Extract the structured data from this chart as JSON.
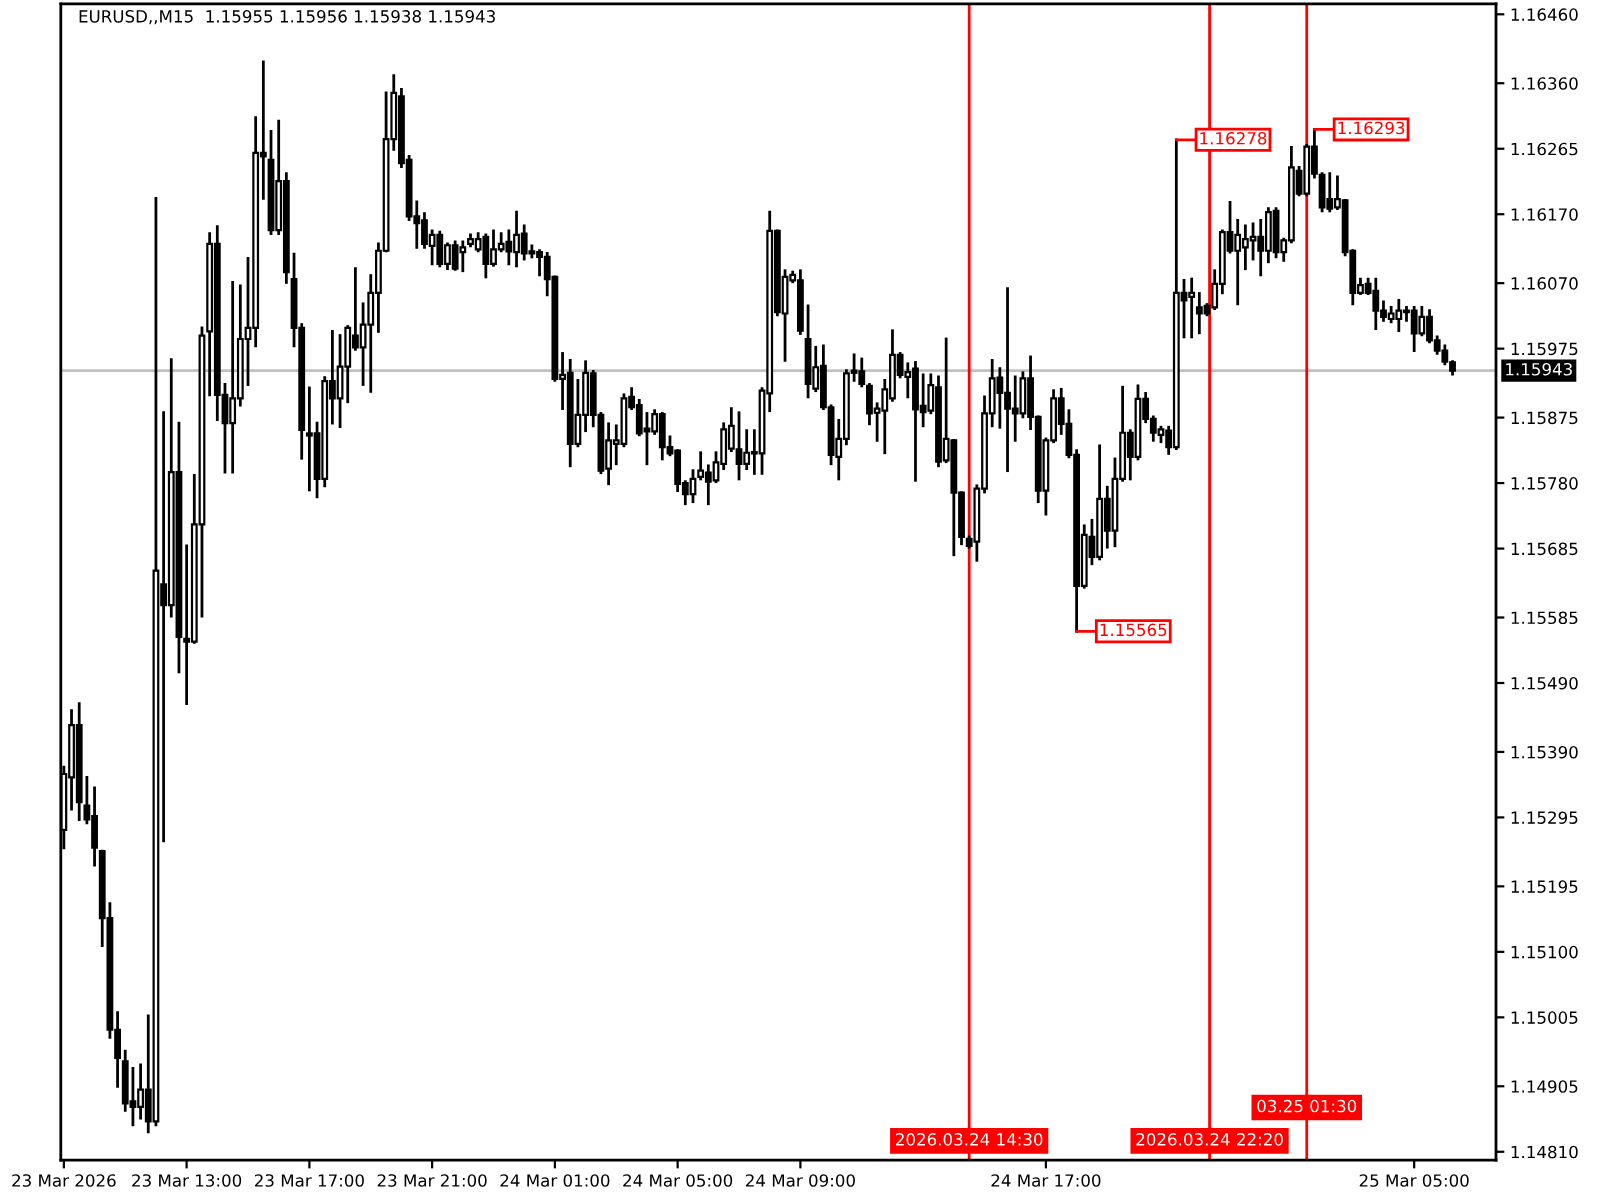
{
  "chart_data": {
    "type": "candlestick",
    "title": "EURUSD,,M15  1.15955 1.15956 1.15938 1.15943",
    "x": [
      "2026-03-23T09:00",
      "2026-03-23T09:15",
      "2026-03-23T09:30",
      "2026-03-23T09:45",
      "2026-03-23T10:00",
      "2026-03-23T10:15",
      "2026-03-23T10:30",
      "2026-03-23T10:45",
      "2026-03-23T11:00",
      "2026-03-23T11:15",
      "2026-03-23T11:30",
      "2026-03-23T11:45",
      "2026-03-23T12:00",
      "2026-03-23T12:15",
      "2026-03-23T12:30",
      "2026-03-23T12:45",
      "2026-03-23T13:00",
      "2026-03-23T13:15",
      "2026-03-23T13:30",
      "2026-03-23T13:45",
      "2026-03-23T14:00",
      "2026-03-23T14:15",
      "2026-03-23T14:30",
      "2026-03-23T14:45",
      "2026-03-23T15:00",
      "2026-03-23T15:15",
      "2026-03-23T15:30",
      "2026-03-23T15:45",
      "2026-03-23T16:00",
      "2026-03-23T16:15",
      "2026-03-23T16:30",
      "2026-03-23T16:45",
      "2026-03-23T17:00",
      "2026-03-23T17:15",
      "2026-03-23T17:30",
      "2026-03-23T17:45",
      "2026-03-23T18:00",
      "2026-03-23T18:15",
      "2026-03-23T18:30",
      "2026-03-23T18:45",
      "2026-03-23T19:00",
      "2026-03-23T19:15",
      "2026-03-23T19:30",
      "2026-03-23T19:45",
      "2026-03-23T20:00",
      "2026-03-23T20:15",
      "2026-03-23T20:30",
      "2026-03-23T20:45",
      "2026-03-23T21:00",
      "2026-03-23T21:15",
      "2026-03-23T21:30",
      "2026-03-23T21:45",
      "2026-03-23T22:00",
      "2026-03-23T22:15",
      "2026-03-23T22:30",
      "2026-03-23T22:45",
      "2026-03-23T23:00",
      "2026-03-23T23:15",
      "2026-03-23T23:30",
      "2026-03-23T23:45",
      "2026-03-24T00:00",
      "2026-03-24T00:15",
      "2026-03-24T00:30",
      "2026-03-24T00:45",
      "2026-03-24T01:00",
      "2026-03-24T01:15",
      "2026-03-24T01:30",
      "2026-03-24T01:45",
      "2026-03-24T02:00",
      "2026-03-24T02:15",
      "2026-03-24T02:30",
      "2026-03-24T02:45",
      "2026-03-24T03:00",
      "2026-03-24T03:15",
      "2026-03-24T03:30",
      "2026-03-24T03:45",
      "2026-03-24T04:00",
      "2026-03-24T04:15",
      "2026-03-24T04:30",
      "2026-03-24T04:45",
      "2026-03-24T05:00",
      "2026-03-24T05:15",
      "2026-03-24T05:30",
      "2026-03-24T05:45",
      "2026-03-24T06:00",
      "2026-03-24T06:15",
      "2026-03-24T06:30",
      "2026-03-24T06:45",
      "2026-03-24T07:00",
      "2026-03-24T07:15",
      "2026-03-24T07:30",
      "2026-03-24T07:45",
      "2026-03-24T08:00",
      "2026-03-24T08:15",
      "2026-03-24T08:30",
      "2026-03-24T08:45",
      "2026-03-24T09:00",
      "2026-03-24T09:15",
      "2026-03-24T09:30",
      "2026-03-24T09:45",
      "2026-03-24T10:00",
      "2026-03-24T10:15",
      "2026-03-24T10:30",
      "2026-03-24T10:45",
      "2026-03-24T11:00",
      "2026-03-24T11:15",
      "2026-03-24T11:30",
      "2026-03-24T11:45",
      "2026-03-24T12:00",
      "2026-03-24T12:15",
      "2026-03-24T12:30",
      "2026-03-24T12:45",
      "2026-03-24T13:00",
      "2026-03-24T13:15",
      "2026-03-24T13:30",
      "2026-03-24T13:45",
      "2026-03-24T14:00",
      "2026-03-24T14:15",
      "2026-03-24T14:30",
      "2026-03-24T14:45",
      "2026-03-24T15:00",
      "2026-03-24T15:15",
      "2026-03-24T15:30",
      "2026-03-24T15:45",
      "2026-03-24T16:00",
      "2026-03-24T16:15",
      "2026-03-24T16:30",
      "2026-03-24T16:45",
      "2026-03-24T17:00",
      "2026-03-24T17:15",
      "2026-03-24T17:30",
      "2026-03-24T17:45",
      "2026-03-24T18:00",
      "2026-03-24T18:15",
      "2026-03-24T18:30",
      "2026-03-24T18:45",
      "2026-03-24T19:00",
      "2026-03-24T19:15",
      "2026-03-24T19:30",
      "2026-03-24T19:45",
      "2026-03-24T20:00",
      "2026-03-24T20:15",
      "2026-03-24T20:30",
      "2026-03-24T20:45",
      "2026-03-24T21:00",
      "2026-03-24T21:15",
      "2026-03-24T21:30",
      "2026-03-24T21:45",
      "2026-03-24T22:00",
      "2026-03-24T22:15",
      "2026-03-24T22:30",
      "2026-03-24T22:45",
      "2026-03-24T23:00",
      "2026-03-24T23:15",
      "2026-03-24T23:30",
      "2026-03-24T23:45",
      "2026-03-25T00:00",
      "2026-03-25T00:15",
      "2026-03-25T00:30",
      "2026-03-25T00:45",
      "2026-03-25T01:00",
      "2026-03-25T01:15",
      "2026-03-25T01:30",
      "2026-03-25T01:45",
      "2026-03-25T02:00",
      "2026-03-25T02:15",
      "2026-03-25T02:30",
      "2026-03-25T02:45",
      "2026-03-25T03:00",
      "2026-03-25T03:15",
      "2026-03-25T03:30",
      "2026-03-25T03:45",
      "2026-03-25T04:00",
      "2026-03-25T04:15",
      "2026-03-25T04:30",
      "2026-03-25T04:45",
      "2026-03-25T05:00",
      "2026-03-25T05:15",
      "2026-03-25T05:30",
      "2026-03-25T05:45",
      "2026-03-25T06:00",
      "2026-03-25T06:15"
    ],
    "ohlc": [
      [
        1.15277,
        1.15368,
        1.15251,
        1.15358
      ],
      [
        1.15353,
        1.1545,
        1.15307,
        1.15429
      ],
      [
        1.15429,
        1.1546,
        1.15292,
        1.15317
      ],
      [
        1.15312,
        1.15353,
        1.15287,
        1.15292
      ],
      [
        1.15297,
        1.15338,
        1.15226,
        1.15251
      ],
      [
        1.15246,
        1.15246,
        1.15109,
        1.15149
      ],
      [
        1.15149,
        1.1517,
        1.14976,
        1.14987
      ],
      [
        1.14987,
        1.15012,
        1.14905,
        1.14946
      ],
      [
        1.14941,
        1.14956,
        1.1487,
        1.1488
      ],
      [
        1.14883,
        1.14931,
        1.14849,
        1.14875
      ],
      [
        1.14875,
        1.14936,
        1.14859,
        1.149
      ],
      [
        1.149,
        1.15007,
        1.14839,
        1.14854
      ],
      [
        1.14854,
        1.16193,
        1.14849,
        1.15653
      ],
      [
        1.15633,
        1.15882,
        1.15261,
        1.15603
      ],
      [
        1.15603,
        1.15959,
        1.15587,
        1.15796
      ],
      [
        1.15796,
        1.15867,
        1.15506,
        1.15557
      ],
      [
        1.15554,
        1.15689,
        1.1546,
        1.1555
      ],
      [
        1.1555,
        1.15791,
        1.15549,
        1.1572
      ],
      [
        1.1572,
        1.16005,
        1.15587,
        1.15994
      ],
      [
        1.16,
        1.16142,
        1.15908,
        1.16127
      ],
      [
        1.16127,
        1.16152,
        1.15872,
        1.15908
      ],
      [
        1.15908,
        1.15923,
        1.15796,
        1.15867
      ],
      [
        1.15867,
        1.16071,
        1.15796,
        1.15903
      ],
      [
        1.15903,
        1.16066,
        1.15893,
        1.15989
      ],
      [
        1.15989,
        1.16106,
        1.15923,
        1.16005
      ],
      [
        1.16005,
        1.1631,
        1.15979,
        1.16259
      ],
      [
        1.16259,
        1.16391,
        1.16193,
        1.16254
      ],
      [
        1.16249,
        1.1629,
        1.16142,
        1.16147
      ],
      [
        1.16147,
        1.16305,
        1.16142,
        1.16218
      ],
      [
        1.16218,
        1.16229,
        1.16071,
        1.16086
      ],
      [
        1.16076,
        1.16112,
        1.15979,
        1.16005
      ],
      [
        1.16005,
        1.1601,
        1.15816,
        1.15857
      ],
      [
        1.15852,
        1.15918,
        1.1577,
        1.15849
      ],
      [
        1.15852,
        1.15867,
        1.1576,
        1.15786
      ],
      [
        1.15786,
        1.15933,
        1.15776,
        1.15928
      ],
      [
        1.15928,
        1.16,
        1.15867,
        1.15903
      ],
      [
        1.15903,
        1.15994,
        1.15862,
        1.15949
      ],
      [
        1.15949,
        1.16007,
        1.15898,
        1.16005
      ],
      [
        1.15994,
        1.16091,
        1.15974,
        1.15977
      ],
      [
        1.15977,
        1.1604,
        1.15923,
        1.1601
      ],
      [
        1.1601,
        1.16081,
        1.15913,
        1.16056
      ],
      [
        1.16056,
        1.16127,
        1.16,
        1.16117
      ],
      [
        1.16117,
        1.16346,
        1.16117,
        1.16279
      ],
      [
        1.16279,
        1.16371,
        1.16264,
        1.16346
      ],
      [
        1.16341,
        1.16351,
        1.16239,
        1.16244
      ],
      [
        1.16249,
        1.16254,
        1.16162,
        1.16167
      ],
      [
        1.16167,
        1.16188,
        1.16122,
        1.16157
      ],
      [
        1.16161,
        1.16171,
        1.16122,
        1.16127
      ],
      [
        1.16124,
        1.16146,
        1.16098,
        1.1614
      ],
      [
        1.1614,
        1.16144,
        1.16095,
        1.16098
      ],
      [
        1.16098,
        1.16127,
        1.16091,
        1.16125
      ],
      [
        1.16125,
        1.1613,
        1.1609,
        1.16091
      ],
      [
        1.16115,
        1.1613,
        1.16088,
        1.16122
      ],
      [
        1.16127,
        1.1614,
        1.16124,
        1.16134
      ],
      [
        1.16119,
        1.16142,
        1.16117,
        1.16134
      ],
      [
        1.16137,
        1.1614,
        1.16079,
        1.16098
      ],
      [
        1.16098,
        1.16146,
        1.16096,
        1.16119
      ],
      [
        1.16119,
        1.16142,
        1.16117,
        1.16127
      ],
      [
        1.1613,
        1.16146,
        1.16098,
        1.16116
      ],
      [
        1.16115,
        1.16173,
        1.16095,
        1.1614
      ],
      [
        1.16142,
        1.16153,
        1.16105,
        1.16113
      ],
      [
        1.16116,
        1.16124,
        1.16108,
        1.16113
      ],
      [
        1.16115,
        1.16117,
        1.16082,
        1.16108
      ],
      [
        1.16108,
        1.16113,
        1.16053,
        1.16076
      ],
      [
        1.16079,
        1.16079,
        1.15929,
        1.15931
      ],
      [
        1.15931,
        1.15968,
        1.15888,
        1.15937
      ],
      [
        1.1594,
        1.15958,
        1.15805,
        1.15837
      ],
      [
        1.15837,
        1.15929,
        1.15834,
        1.15879
      ],
      [
        1.15879,
        1.15956,
        1.15856,
        1.1594
      ],
      [
        1.15939,
        1.15942,
        1.15863,
        1.15879
      ],
      [
        1.15879,
        1.15881,
        1.15795,
        1.15798
      ],
      [
        1.15801,
        1.15866,
        1.15779,
        1.15842
      ],
      [
        1.15837,
        1.15863,
        1.15808,
        1.15842
      ],
      [
        1.15837,
        1.15908,
        1.15834,
        1.15903
      ],
      [
        1.15905,
        1.15917,
        1.15888,
        1.1589
      ],
      [
        1.15893,
        1.159,
        1.1585,
        1.15852
      ],
      [
        1.15859,
        1.15881,
        1.15808,
        1.15855
      ],
      [
        1.15855,
        1.15885,
        1.15852,
        1.1588
      ],
      [
        1.1588,
        1.15881,
        1.15815,
        1.15832
      ],
      [
        1.15832,
        1.15847,
        1.15821,
        1.15823
      ],
      [
        1.15827,
        1.15827,
        1.15769,
        1.15779
      ],
      [
        1.1578,
        1.15782,
        1.1575,
        1.15764
      ],
      [
        1.15764,
        1.15798,
        1.15753,
        1.15786
      ],
      [
        1.15789,
        1.15824,
        1.15786,
        1.15798
      ],
      [
        1.15795,
        1.15805,
        1.1575,
        1.15782
      ],
      [
        1.15784,
        1.15824,
        1.15782,
        1.1581
      ],
      [
        1.15808,
        1.15866,
        1.15801,
        1.15858
      ],
      [
        1.1583,
        1.15888,
        1.15827,
        1.15863
      ],
      [
        1.15829,
        1.15882,
        1.15786,
        1.15808
      ],
      [
        1.15808,
        1.15856,
        1.15801,
        1.15824
      ],
      [
        1.15823,
        1.15856,
        1.15794,
        1.15825
      ],
      [
        1.15823,
        1.15917,
        1.15794,
        1.15914
      ],
      [
        1.1591,
        1.16173,
        1.15885,
        1.16146
      ],
      [
        1.16146,
        1.16146,
        1.16024,
        1.16028
      ],
      [
        1.16026,
        1.16088,
        1.15958,
        1.16079
      ],
      [
        1.16074,
        1.16086,
        1.16072,
        1.16082
      ],
      [
        1.16074,
        1.16088,
        1.15997,
        1.16001
      ],
      [
        1.15989,
        1.16037,
        1.15905,
        1.15924
      ],
      [
        1.15917,
        1.15977,
        1.15914,
        1.15948
      ],
      [
        1.1595,
        1.15979,
        1.15888,
        1.1589
      ],
      [
        1.1589,
        1.15892,
        1.15808,
        1.15821
      ],
      [
        1.15818,
        1.15871,
        1.15786,
        1.15844
      ],
      [
        1.15844,
        1.15943,
        1.15837,
        1.15939
      ],
      [
        1.15943,
        1.15966,
        1.15929,
        1.1594
      ],
      [
        1.15942,
        1.1596,
        1.15921,
        1.15924
      ],
      [
        1.15921,
        1.15923,
        1.15866,
        1.15881
      ],
      [
        1.15882,
        1.15895,
        1.15842,
        1.15888
      ],
      [
        1.15885,
        1.15929,
        1.15824,
        1.15916
      ],
      [
        1.15903,
        1.16001,
        1.159,
        1.15966
      ],
      [
        1.15966,
        1.15968,
        1.15934,
        1.15937
      ],
      [
        1.15934,
        1.15953,
        1.15905,
        1.15941
      ],
      [
        1.15946,
        1.15955,
        1.15784,
        1.15887
      ],
      [
        1.15892,
        1.15937,
        1.15863,
        1.15883
      ],
      [
        1.15885,
        1.15937,
        1.15882,
        1.15922
      ],
      [
        1.15919,
        1.15934,
        1.15805,
        1.15811
      ],
      [
        1.15813,
        1.15989,
        1.15811,
        1.15844
      ],
      [
        1.15842,
        1.15842,
        1.15676,
        1.15766
      ],
      [
        1.15766,
        1.15766,
        1.15692,
        1.15702
      ],
      [
        1.15699,
        1.15702,
        1.15687,
        1.15689
      ],
      [
        1.15695,
        1.15776,
        1.15668,
        1.15772
      ],
      [
        1.15772,
        1.15905,
        1.15767,
        1.15881
      ],
      [
        1.15881,
        1.15958,
        1.15863,
        1.15932
      ],
      [
        1.15933,
        1.15946,
        1.15861,
        1.15911
      ],
      [
        1.15911,
        1.16062,
        1.15798,
        1.15888
      ],
      [
        1.15888,
        1.15934,
        1.15842,
        1.15881
      ],
      [
        1.15881,
        1.1594,
        1.15876,
        1.15932
      ],
      [
        1.15932,
        1.15963,
        1.15859,
        1.15876
      ],
      [
        1.15876,
        1.15876,
        1.15753,
        1.15769
      ],
      [
        1.15769,
        1.15844,
        1.15735,
        1.15842
      ],
      [
        1.15842,
        1.15914,
        1.1584,
        1.15903
      ],
      [
        1.15903,
        1.15916,
        1.15852,
        1.15866
      ],
      [
        1.15866,
        1.15885,
        1.15818,
        1.15821
      ],
      [
        1.15821,
        1.15827,
        1.15565,
        1.15631
      ],
      [
        1.15631,
        1.15718,
        1.15629,
        1.15705
      ],
      [
        1.15702,
        1.15726,
        1.15663,
        1.15673
      ],
      [
        1.15673,
        1.15834,
        1.1567,
        1.15757
      ],
      [
        1.15757,
        1.15774,
        1.15687,
        1.15711
      ],
      [
        1.15711,
        1.15815,
        1.15689,
        1.15786
      ],
      [
        1.15786,
        1.15919,
        1.15784,
        1.15853
      ],
      [
        1.15853,
        1.15856,
        1.15786,
        1.15818
      ],
      [
        1.15818,
        1.15921,
        1.15815,
        1.15902
      ],
      [
        1.15902,
        1.1591,
        1.15869,
        1.15873
      ],
      [
        1.15873,
        1.15876,
        1.15842,
        1.15853
      ],
      [
        1.1585,
        1.15861,
        1.1584,
        1.15858
      ],
      [
        1.15856,
        1.15861,
        1.15823,
        1.15832
      ],
      [
        1.15832,
        1.16278,
        1.1583,
        1.16056
      ],
      [
        1.16056,
        1.16074,
        1.15992,
        1.16045
      ],
      [
        1.1605,
        1.16076,
        1.15992,
        1.16056
      ],
      [
        1.16035,
        1.16055,
        1.15998,
        1.16026
      ],
      [
        1.16037,
        1.16039,
        1.16024,
        1.16026
      ],
      [
        1.16035,
        1.16088,
        1.16033,
        1.16069
      ],
      [
        1.16069,
        1.16146,
        1.16056,
        1.16144
      ],
      [
        1.16144,
        1.16187,
        1.16115,
        1.16117
      ],
      [
        1.16117,
        1.16161,
        1.1604,
        1.1614
      ],
      [
        1.16122,
        1.16153,
        1.16091,
        1.16134
      ],
      [
        1.16132,
        1.16156,
        1.16105,
        1.16137
      ],
      [
        1.16137,
        1.16161,
        1.16082,
        1.16117
      ],
      [
        1.16117,
        1.16178,
        1.16101,
        1.16173
      ],
      [
        1.16175,
        1.16178,
        1.16108,
        1.16115
      ],
      [
        1.16115,
        1.16134,
        1.16103,
        1.16132
      ],
      [
        1.16132,
        1.16267,
        1.1613,
        1.16238
      ],
      [
        1.16233,
        1.16238,
        1.16198,
        1.162
      ],
      [
        1.162,
        1.1627,
        1.16198,
        1.16268
      ],
      [
        1.16268,
        1.16293,
        1.16224,
        1.16229
      ],
      [
        1.16227,
        1.16229,
        1.16175,
        1.1618
      ],
      [
        1.16192,
        1.16229,
        1.16175,
        1.16178
      ],
      [
        1.1618,
        1.16224,
        1.16178,
        1.16192
      ],
      [
        1.1619,
        1.1619,
        1.16111,
        1.16115
      ],
      [
        1.16117,
        1.16117,
        1.1604,
        1.16056
      ],
      [
        1.16056,
        1.16076,
        1.16055,
        1.16067
      ],
      [
        1.16069,
        1.16076,
        1.16055,
        1.16056
      ],
      [
        1.16059,
        1.16076,
        1.16004,
        1.1603
      ],
      [
        1.1603,
        1.16043,
        1.16016,
        1.16021
      ],
      [
        1.16018,
        1.16035,
        1.16014,
        1.16026
      ],
      [
        1.16018,
        1.16045,
        1.16001,
        1.1603
      ],
      [
        1.1603,
        1.16035,
        1.16016,
        1.16028
      ],
      [
        1.1603,
        1.16035,
        1.15972,
        1.15997
      ],
      [
        1.15997,
        1.16035,
        1.15995,
        1.16021
      ],
      [
        1.16021,
        1.1603,
        1.15985,
        1.15987
      ],
      [
        1.15987,
        1.15992,
        1.15968,
        1.15972
      ],
      [
        1.15972,
        1.15979,
        1.15953,
        1.15956
      ],
      [
        1.15955,
        1.15956,
        1.15938,
        1.15943
      ]
    ],
    "xlim": [
      "2026-03-23T08:54",
      "2026-03-25T07:40"
    ],
    "xticks": [
      {
        "value": "2026-03-23T09:00",
        "label": "23 Mar 2026"
      },
      {
        "value": "2026-03-23T13:00",
        "label": "23 Mar 13:00"
      },
      {
        "value": "2026-03-23T17:00",
        "label": "23 Mar 17:00"
      },
      {
        "value": "2026-03-23T21:00",
        "label": "23 Mar 21:00"
      },
      {
        "value": "2026-03-24T01:00",
        "label": "24 Mar 01:00"
      },
      {
        "value": "2026-03-24T05:00",
        "label": "24 Mar 05:00"
      },
      {
        "value": "2026-03-24T09:00",
        "label": "24 Mar 09:00"
      },
      {
        "value": "2026-03-24T17:00",
        "label": "24 Mar 17:00"
      },
      {
        "value": "2026-03-25T05:00",
        "label": "25 Mar 05:00"
      }
    ],
    "ylim": [
      1.14798,
      1.16475
    ],
    "yticks": [
      {
        "value": 1.1646,
        "label": "1.16460"
      },
      {
        "value": 1.1636,
        "label": "1.16360"
      },
      1.16265,
      {
        "value": 1.1617,
        "label": "1.16170"
      },
      {
        "value": 1.1607,
        "label": "1.16070"
      },
      1.15975,
      1.15875,
      {
        "value": 1.1578,
        "label": "1.15780"
      },
      1.15685,
      1.15585,
      {
        "value": 1.1549,
        "label": "1.15490"
      },
      {
        "value": 1.1539,
        "label": "1.15390"
      },
      1.15295,
      1.15195,
      {
        "value": 1.151,
        "label": "1.15100"
      },
      1.15005,
      1.14905,
      {
        "value": 1.1481,
        "label": "1.14810"
      }
    ],
    "ref_lines": [
      {
        "axis": "y",
        "value": 1.15943,
        "label": "1.15943",
        "color": "#c0c0c0"
      },
      {
        "axis": "x",
        "value": "2026-03-24T14:30",
        "label": "2026.03.24 14:30",
        "color": "#ff0000"
      },
      {
        "axis": "x",
        "value": "2026-03-24T22:20",
        "label": "2026.03.24 22:20",
        "color": "#ff0000"
      },
      {
        "axis": "x",
        "value": "2026-03-25T01:30",
        "label": "03.25 01:30",
        "color": "#ff0000"
      }
    ],
    "annotations": [
      {
        "text": "1.16278",
        "x": "2026-03-24T21:15",
        "y": 1.16278
      },
      {
        "text": "1.16293",
        "x": "2026-03-25T01:45",
        "y": 1.16293
      },
      {
        "text": "1.15565",
        "x": "2026-03-24T18:00",
        "y": 1.15565
      }
    ],
    "grid": false,
    "legend": false
  }
}
